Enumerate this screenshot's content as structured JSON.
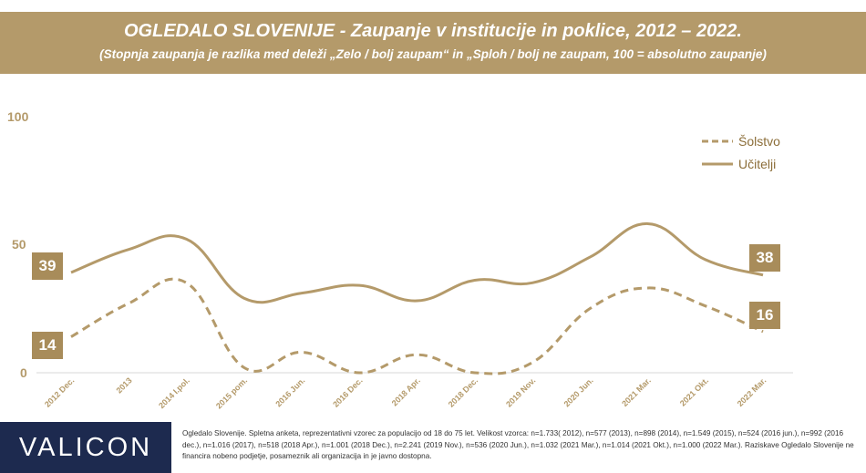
{
  "header": {
    "title": "OGLEDALO SLOVENIJE - Zaupanje v institucije in poklice, 2012 – 2022.",
    "subtitle": "(Stopnja zaupanja je razlika med deleži „Zelo / bolj zaupam“ in „Sploh / bolj ne zaupam, 100 = absolutno zaupanje)"
  },
  "chart_data": {
    "type": "line",
    "categories": [
      "2012 Dec.",
      "2013",
      "2014 I.pol.",
      "2015 pom.",
      "2016 Jun.",
      "2016 Dec.",
      "2018 Apr.",
      "2018 Dec.",
      "2019 Nov.",
      "2020 Jun.",
      "2021 Mar.",
      "2021 Okt.",
      "2022 Mar."
    ],
    "series": [
      {
        "name": "Šolstvo",
        "style": "dashed",
        "values": [
          14,
          27,
          35,
          2,
          8,
          0,
          7,
          0,
          4,
          25,
          33,
          26,
          16
        ]
      },
      {
        "name": "Učitelji",
        "style": "solid",
        "values": [
          39,
          48,
          52,
          29,
          31,
          34,
          28,
          36,
          35,
          45,
          58,
          44,
          38
        ]
      }
    ],
    "yticks": [
      "0",
      "50",
      "100"
    ],
    "ylim": [
      0,
      100
    ],
    "data_labels": {
      "first_solstvo": "14",
      "first_ucitelji": "39",
      "last_solstvo": "16",
      "last_ucitelji": "38"
    },
    "colors": {
      "line": "#b49a6a",
      "label_bg": "#a88c5a"
    },
    "legend_position": "top-right"
  },
  "footer": {
    "logo": "VALICON",
    "note": "Ogledalo Slovenije. Spletna anketa, reprezentativni vzorec za populacijo od 18 do 75 let. Velikost vzorca: n=1.733( 2012), n=577 (2013), n=898 (2014), n=1.549 (2015), n=524 (2016 jun.), n=992 (2016 dec.), n=1.016 (2017), n=518 (2018 Apr.), n=1.001 (2018 Dec.), n=2.241 (2019 Nov.), n=536 (2020 Jun.), n=1.032 (2021 Mar.), n=1.014 (2021 Okt.), n=1.000 (2022 Mar.). Raziskave Ogledalo Slovenije ne financira nobeno podjetje, posameznik ali organizacija in je javno dostopna."
  }
}
